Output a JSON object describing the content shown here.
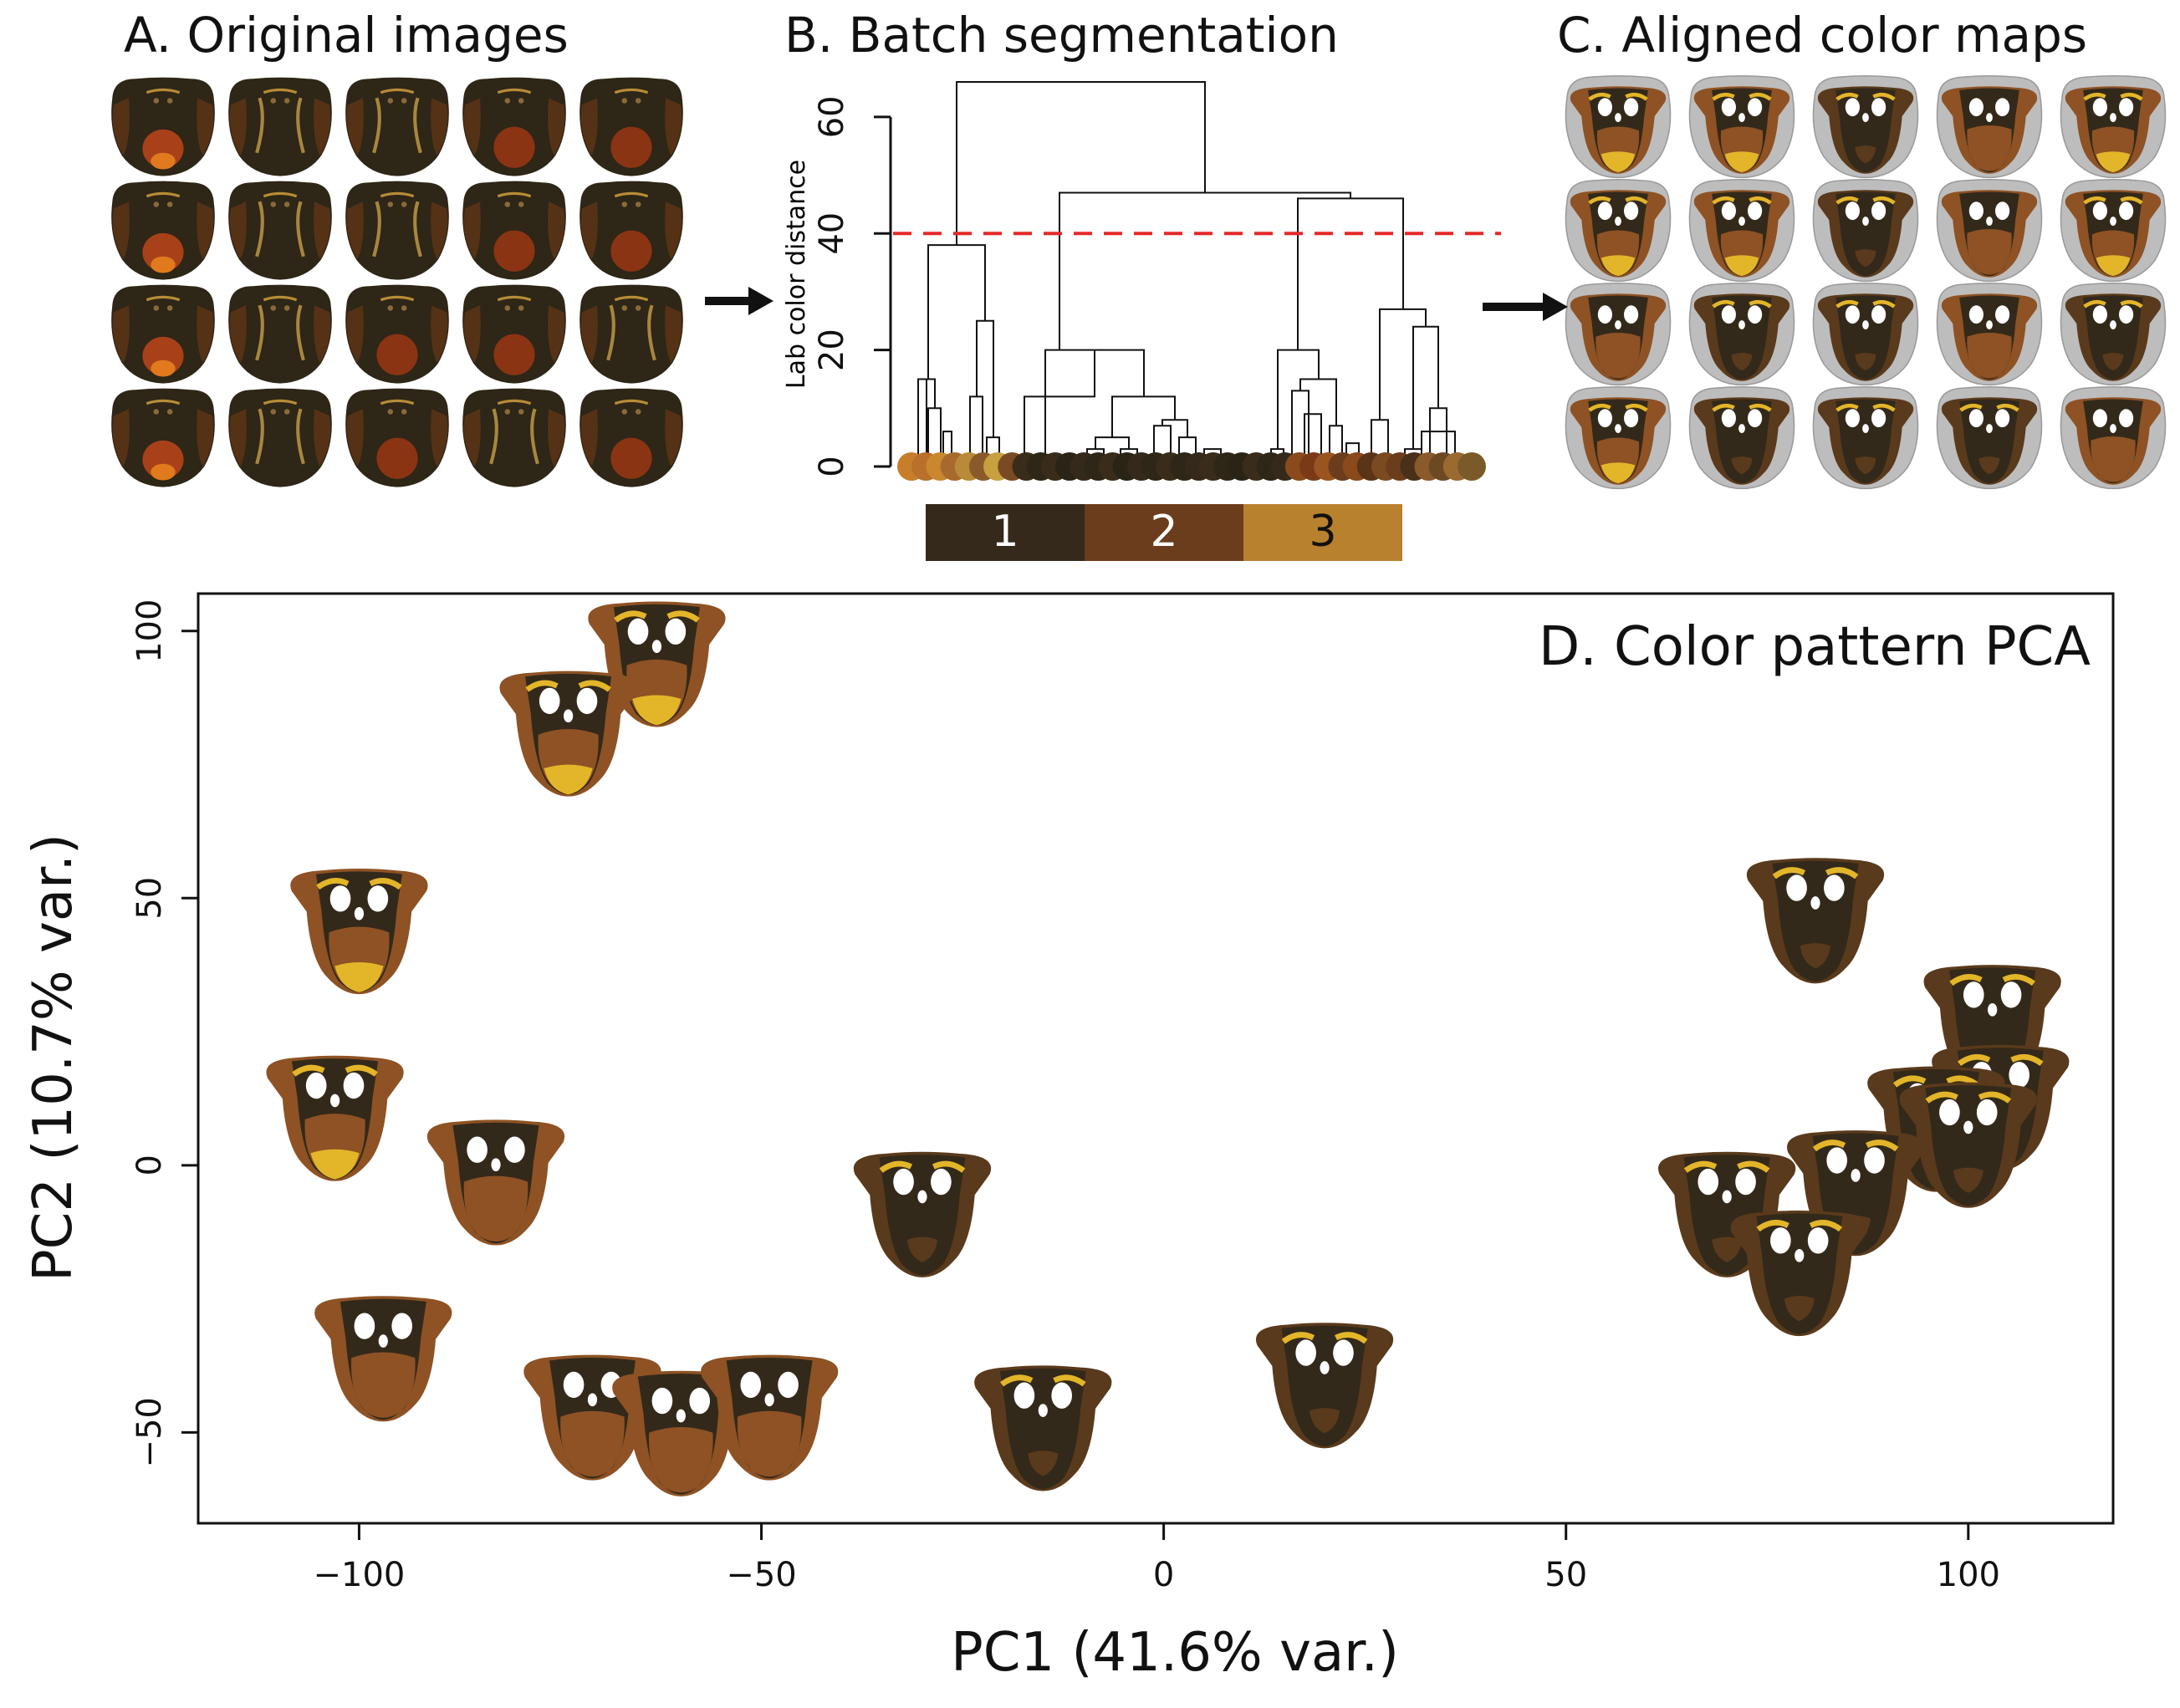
{
  "panels": {
    "a": {
      "title": "A. Original images",
      "rows": 4,
      "cols": 5
    },
    "b": {
      "title": "B. Batch segmentation",
      "ylabel": "Lab color distance",
      "yticks": [
        "0",
        "20",
        "40",
        "60"
      ],
      "ylim": [
        0,
        65
      ],
      "cut_height": 40,
      "clusters": [
        {
          "label": "1",
          "color": "#34291a"
        },
        {
          "label": "2",
          "color": "#6b3d1c"
        },
        {
          "label": "3",
          "color": "#b8812e"
        }
      ]
    },
    "c": {
      "title": "C. Aligned color maps",
      "rows": 4,
      "cols": 5
    }
  },
  "chart_data": {
    "type": "scatter",
    "title": "D. Color pattern PCA",
    "xlabel": "PC1 (41.6% var.)",
    "ylabel": "PC2 (10.7% var.)",
    "xlim": [
      -120,
      118
    ],
    "ylim": [
      -67,
      107
    ],
    "xticks": [
      -100,
      -50,
      0,
      50,
      100
    ],
    "yticks": [
      -50,
      0,
      50,
      100
    ],
    "xtick_labels": [
      "−100",
      "−50",
      "0",
      "50",
      "100"
    ],
    "ytick_labels": [
      "−50",
      "0",
      "50",
      "100"
    ],
    "points": [
      {
        "x": -63,
        "y": 95,
        "style": "mixed"
      },
      {
        "x": -74,
        "y": 82,
        "style": "yellow"
      },
      {
        "x": -100,
        "y": 45,
        "style": "yellow"
      },
      {
        "x": -103,
        "y": 10,
        "style": "mixed"
      },
      {
        "x": -83,
        "y": -2,
        "style": "brown"
      },
      {
        "x": -97,
        "y": -35,
        "style": "brown"
      },
      {
        "x": -71,
        "y": -46,
        "style": "brown"
      },
      {
        "x": -60,
        "y": -49,
        "style": "brown"
      },
      {
        "x": -49,
        "y": -46,
        "style": "brown"
      },
      {
        "x": -30,
        "y": -8,
        "style": "dark"
      },
      {
        "x": -15,
        "y": -48,
        "style": "dark"
      },
      {
        "x": 20,
        "y": -40,
        "style": "dark"
      },
      {
        "x": 81,
        "y": 47,
        "style": "dark"
      },
      {
        "x": 103,
        "y": 27,
        "style": "dark"
      },
      {
        "x": 104,
        "y": 12,
        "style": "dark"
      },
      {
        "x": 96,
        "y": 8,
        "style": "dark"
      },
      {
        "x": 100,
        "y": 5,
        "style": "dark"
      },
      {
        "x": 86,
        "y": -4,
        "style": "dark"
      },
      {
        "x": 70,
        "y": -8,
        "style": "dark"
      },
      {
        "x": 79,
        "y": -19,
        "style": "dark"
      }
    ]
  }
}
